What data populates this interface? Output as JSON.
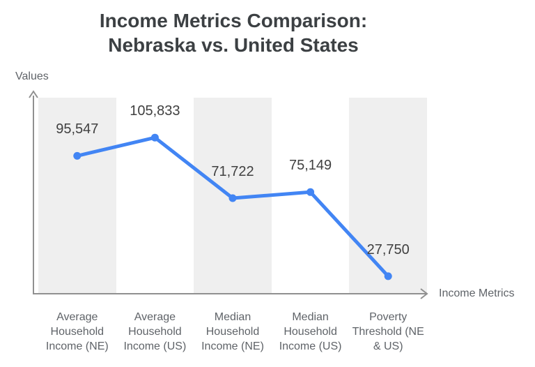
{
  "title": {
    "line1": "Income Metrics Comparison:",
    "line2": "Nebraska vs. United States"
  },
  "chart_data": {
    "type": "line",
    "title": "Income Metrics Comparison: Nebraska vs. United States",
    "xlabel": "Income Metrics",
    "ylabel": "Values",
    "categories": [
      "Average Household Income (NE)",
      "Average Household Income (US)",
      "Median Household Income (NE)",
      "Median Household Income (US)",
      "Poverty Threshold (NE & US)"
    ],
    "values": [
      95547,
      105833,
      71722,
      75149,
      27750
    ],
    "point_labels": [
      "95,547",
      "105,833",
      "71,722",
      "75,149",
      "27,750"
    ],
    "ylim": [
      17900,
      128300
    ],
    "grid": false,
    "legend": "none",
    "band_columns": [
      0,
      2,
      4
    ],
    "colors": {
      "line": "#4285f4",
      "marker": "#4285f4",
      "band": "#efefef",
      "axis": "#909090",
      "title_text": "#3c4043",
      "data_label": "#404040",
      "category_label": "#5f6368",
      "axis_label": "#5f6368",
      "background": "#ffffff"
    }
  }
}
